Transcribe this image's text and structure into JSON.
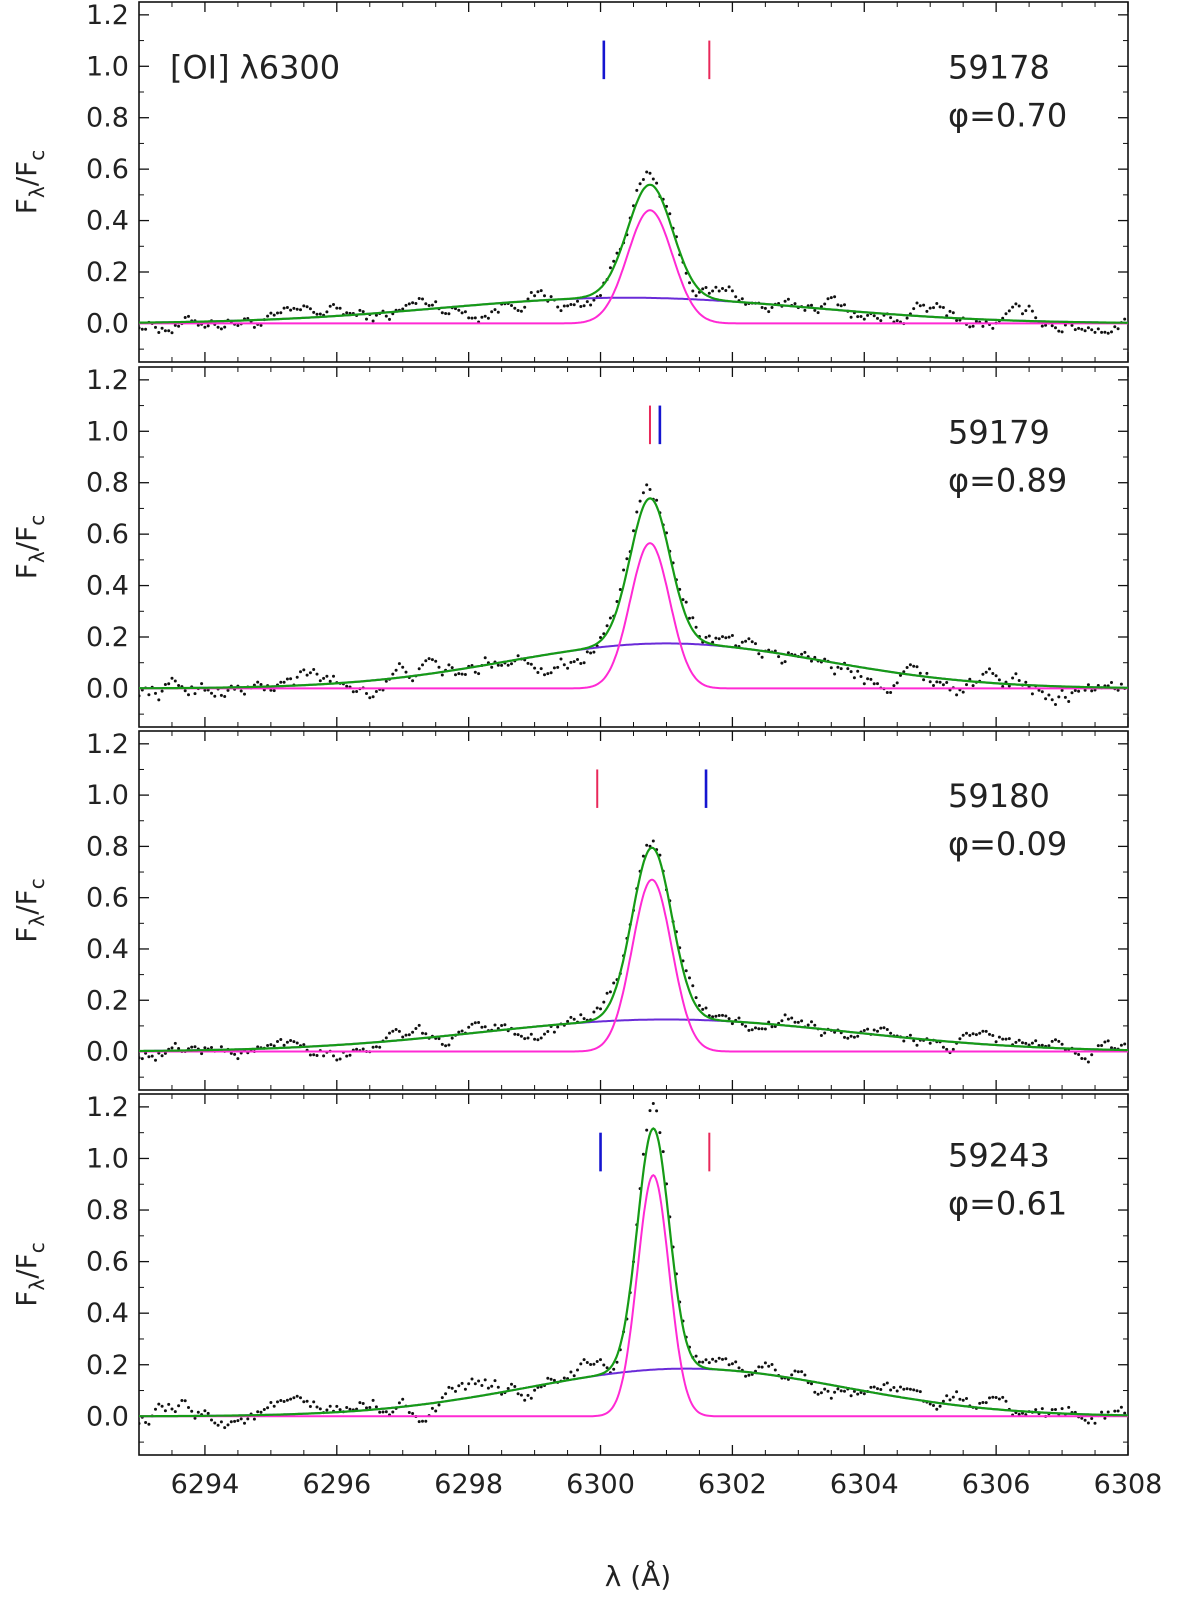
{
  "figure": {
    "line_label": "[OI] λ6300",
    "ylabel_main": "F",
    "ylabel_sub1": "λ",
    "ylabel_slash": "/F",
    "ylabel_sub2": "c",
    "xlabel": "λ (Å)"
  },
  "chart_data": {
    "type": "line",
    "x_axis": {
      "label": "λ (Å)",
      "range": [
        6293.0,
        6308.0
      ],
      "major_ticks": [
        6294,
        6296,
        6298,
        6300,
        6302,
        6304,
        6306,
        6308
      ],
      "minor_step": 0.5
    },
    "y_axis": {
      "label": "Fλ/Fc",
      "range": [
        -0.15,
        1.25
      ],
      "major_ticks": [
        0.0,
        0.2,
        0.4,
        0.6,
        0.8,
        1.0,
        1.2
      ],
      "tick_labels": [
        "0.0",
        "0.2",
        "0.4",
        "0.6",
        "0.8",
        "1.0",
        "1.2"
      ],
      "minor_step": 0.1
    },
    "colors": {
      "data_points": "#111111",
      "total_fit": "#169b16",
      "narrow_component": "#ff2ad4",
      "broad_component": "#6a2bd8",
      "blue_marker": "#1515d0",
      "red_marker": "#e8285a"
    },
    "panels": [
      {
        "mjd": "59178",
        "phase": "φ=0.70",
        "narrow": {
          "center": 6300.75,
          "amp": 0.44,
          "sigma": 0.34
        },
        "broad": {
          "center": 6300.4,
          "amp": 0.1,
          "sigma": 2.8
        },
        "markers": {
          "blue": 6300.05,
          "red": 6301.65
        },
        "data_noise": 0.022
      },
      {
        "mjd": "59179",
        "phase": "φ=0.89",
        "narrow": {
          "center": 6300.75,
          "amp": 0.565,
          "sigma": 0.3
        },
        "broad": {
          "center": 6301.0,
          "amp": 0.175,
          "sigma": 2.4
        },
        "markers": {
          "blue": 6300.9,
          "red": 6300.75
        },
        "data_noise": 0.026
      },
      {
        "mjd": "59180",
        "phase": "φ=0.09",
        "narrow": {
          "center": 6300.78,
          "amp": 0.67,
          "sigma": 0.3
        },
        "broad": {
          "center": 6301.0,
          "amp": 0.125,
          "sigma": 2.8
        },
        "markers": {
          "blue": 6301.6,
          "red": 6299.95
        },
        "data_noise": 0.02
      },
      {
        "mjd": "59243",
        "phase": "φ=0.61",
        "narrow": {
          "center": 6300.8,
          "amp": 0.935,
          "sigma": 0.24
        },
        "broad": {
          "center": 6301.3,
          "amp": 0.185,
          "sigma": 2.4
        },
        "markers": {
          "blue": 6300.0,
          "red": 6301.65
        },
        "data_noise": 0.024
      }
    ]
  }
}
